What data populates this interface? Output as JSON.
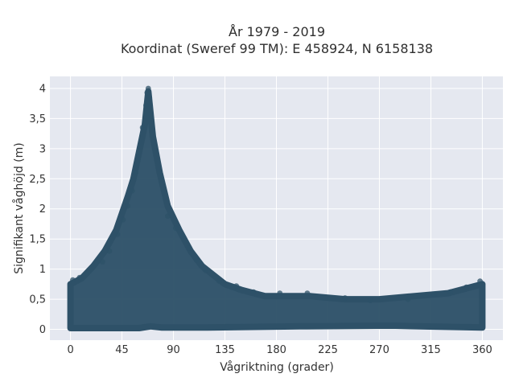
{
  "chart_data": {
    "type": "scatter",
    "title_line1": "År 1979 - 2019",
    "title_line2": "Koordinat (Sweref 99 TM): E 458924, N 6158138",
    "xlabel": "Vågriktning (grader)",
    "ylabel": "Signifikant våghöjd (m)",
    "xlim": [
      -18,
      378
    ],
    "ylim": [
      -0.18,
      4.2
    ],
    "x_ticks": [
      0,
      45,
      90,
      135,
      180,
      225,
      270,
      315,
      360
    ],
    "x_tick_labels": [
      "0",
      "45",
      "90",
      "135",
      "180",
      "225",
      "270",
      "315",
      "360"
    ],
    "y_ticks": [
      0,
      0.5,
      1,
      1.5,
      2,
      2.5,
      3,
      3.5,
      4
    ],
    "y_tick_labels": [
      "0",
      "0,5",
      "1",
      "1,5",
      "2",
      "2,5",
      "3",
      "3,5",
      "4"
    ],
    "grid": true,
    "legend": "none",
    "colors": {
      "marker": "#2e5168",
      "plot_bg": "#e5e8f0",
      "grid": "#ffffff"
    },
    "envelope_upper": [
      {
        "x": 0,
        "y": 0.75
      },
      {
        "x": 10,
        "y": 0.85
      },
      {
        "x": 20,
        "y": 1.05
      },
      {
        "x": 30,
        "y": 1.3
      },
      {
        "x": 40,
        "y": 1.65
      },
      {
        "x": 50,
        "y": 2.2
      },
      {
        "x": 55,
        "y": 2.5
      },
      {
        "x": 60,
        "y": 2.95
      },
      {
        "x": 65,
        "y": 3.4
      },
      {
        "x": 68,
        "y": 3.95
      },
      {
        "x": 72,
        "y": 3.2
      },
      {
        "x": 78,
        "y": 2.6
      },
      {
        "x": 85,
        "y": 2.05
      },
      {
        "x": 95,
        "y": 1.65
      },
      {
        "x": 105,
        "y": 1.3
      },
      {
        "x": 115,
        "y": 1.05
      },
      {
        "x": 125,
        "y": 0.9
      },
      {
        "x": 135,
        "y": 0.75
      },
      {
        "x": 150,
        "y": 0.65
      },
      {
        "x": 170,
        "y": 0.55
      },
      {
        "x": 190,
        "y": 0.55
      },
      {
        "x": 210,
        "y": 0.55
      },
      {
        "x": 240,
        "y": 0.5
      },
      {
        "x": 270,
        "y": 0.5
      },
      {
        "x": 300,
        "y": 0.55
      },
      {
        "x": 330,
        "y": 0.6
      },
      {
        "x": 350,
        "y": 0.7
      },
      {
        "x": 360,
        "y": 0.75
      }
    ],
    "envelope_lower": [
      {
        "x": 0,
        "y": 0.02
      },
      {
        "x": 60,
        "y": 0.02
      },
      {
        "x": 70,
        "y": 0.05
      },
      {
        "x": 80,
        "y": 0.03
      },
      {
        "x": 120,
        "y": 0.03
      },
      {
        "x": 200,
        "y": 0.05
      },
      {
        "x": 280,
        "y": 0.06
      },
      {
        "x": 360,
        "y": 0.03
      }
    ],
    "sample_points": [
      {
        "x": 68,
        "y": 4.0
      },
      {
        "x": 67,
        "y": 3.93
      },
      {
        "x": 69,
        "y": 3.85
      },
      {
        "x": 66,
        "y": 3.72
      },
      {
        "x": 63,
        "y": 3.35
      },
      {
        "x": 57,
        "y": 2.6
      },
      {
        "x": 54,
        "y": 2.3
      },
      {
        "x": 50,
        "y": 2.05
      },
      {
        "x": 46,
        "y": 1.82
      },
      {
        "x": 41,
        "y": 1.58
      },
      {
        "x": 34,
        "y": 1.3
      },
      {
        "x": 28,
        "y": 1.12
      },
      {
        "x": 85,
        "y": 1.88
      },
      {
        "x": 92,
        "y": 1.68
      },
      {
        "x": 98,
        "y": 1.55
      },
      {
        "x": 104,
        "y": 1.35
      },
      {
        "x": 110,
        "y": 1.15
      },
      {
        "x": 118,
        "y": 0.98
      },
      {
        "x": 130,
        "y": 0.8
      },
      {
        "x": 145,
        "y": 0.72
      },
      {
        "x": 160,
        "y": 0.62
      },
      {
        "x": 183,
        "y": 0.6
      },
      {
        "x": 207,
        "y": 0.6
      },
      {
        "x": 240,
        "y": 0.52
      },
      {
        "x": 262,
        "y": 0.48
      },
      {
        "x": 295,
        "y": 0.5
      },
      {
        "x": 318,
        "y": 0.58
      },
      {
        "x": 332,
        "y": 0.62
      },
      {
        "x": 346,
        "y": 0.7
      },
      {
        "x": 358,
        "y": 0.8
      },
      {
        "x": 2,
        "y": 0.82
      },
      {
        "x": 8,
        "y": 0.86
      }
    ]
  }
}
